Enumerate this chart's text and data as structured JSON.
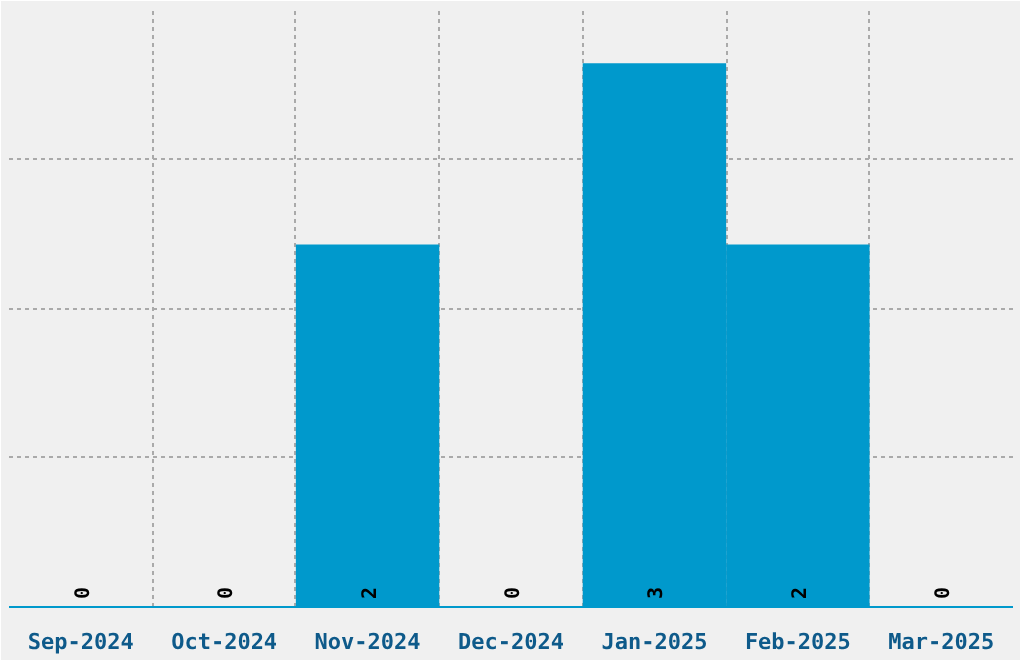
{
  "chart_data": {
    "type": "bar",
    "categories": [
      "Sep-2024",
      "Oct-2024",
      "Nov-2024",
      "Dec-2024",
      "Jan-2025",
      "Feb-2025",
      "Mar-2025"
    ],
    "values": [
      0,
      0,
      2,
      0,
      3,
      2,
      0
    ],
    "color": "#0099cc",
    "data_labels": true,
    "ylim": [
      0,
      3.3
    ],
    "yticks": [
      {
        "value": 0,
        "label": null
      },
      {
        "value": 0.825,
        "label": null
      },
      {
        "value": 1.65,
        "label": null
      },
      {
        "value": 2.475,
        "label": null
      },
      {
        "value": 3.3,
        "label": null
      }
    ],
    "grid": true,
    "tick_labels": "x"
  }
}
